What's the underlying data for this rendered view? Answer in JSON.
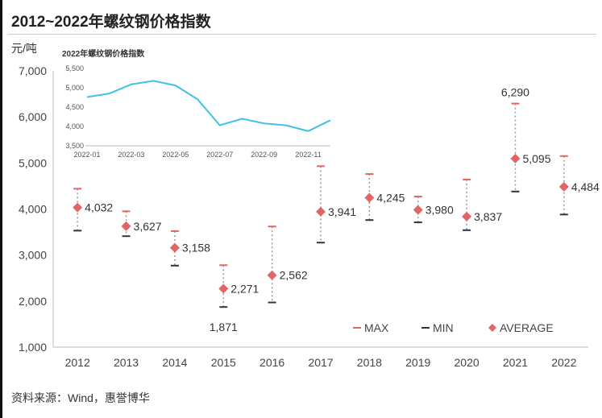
{
  "page": {
    "title": "2012~2022年螺纹钢价格指数",
    "unit": "元/吨",
    "source": "资料来源：Wind，惠誉博华"
  },
  "colors": {
    "max_marker": "#e06666",
    "min_marker": "#333333",
    "average_marker": "#e06666",
    "range_line": "#999999",
    "inset_line": "#3fc1e8",
    "axis": "#bbbbbb"
  },
  "chart_data": [
    {
      "type": "scatter",
      "title": "",
      "ylabel": "元/吨",
      "ylim": [
        1000,
        7000
      ],
      "yticks": [
        "1,000",
        "2,000",
        "3,000",
        "4,000",
        "5,000",
        "6,000",
        "7,000"
      ],
      "categories": [
        "2012",
        "2013",
        "2014",
        "2015",
        "2016",
        "2017",
        "2018",
        "2019",
        "2020",
        "2021",
        "2022"
      ],
      "series": [
        {
          "name": "MAX",
          "values": [
            4440,
            3950,
            3520,
            2780,
            3620,
            4930,
            4760,
            4270,
            4640,
            6290,
            5150
          ]
        },
        {
          "name": "MIN",
          "values": [
            3530,
            3410,
            2770,
            1871,
            1970,
            3270,
            3760,
            3710,
            3540,
            4380,
            3880
          ]
        },
        {
          "name": "AVERAGE",
          "values": [
            4032,
            3627,
            3158,
            2271,
            2562,
            3941,
            4245,
            3980,
            3837,
            5095,
            4484
          ]
        }
      ],
      "data_labels": [
        {
          "series": "AVERAGE",
          "index": 0,
          "text": "4,032"
        },
        {
          "series": "AVERAGE",
          "index": 1,
          "text": "3,627"
        },
        {
          "series": "AVERAGE",
          "index": 2,
          "text": "3,158"
        },
        {
          "series": "AVERAGE",
          "index": 3,
          "text": "2,271"
        },
        {
          "series": "AVERAGE",
          "index": 4,
          "text": "2,562"
        },
        {
          "series": "AVERAGE",
          "index": 5,
          "text": "3,941"
        },
        {
          "series": "AVERAGE",
          "index": 6,
          "text": "4,245"
        },
        {
          "series": "AVERAGE",
          "index": 7,
          "text": "3,980"
        },
        {
          "series": "AVERAGE",
          "index": 8,
          "text": "3,837"
        },
        {
          "series": "AVERAGE",
          "index": 9,
          "text": "5,095"
        },
        {
          "series": "AVERAGE",
          "index": 10,
          "text": "4,484"
        },
        {
          "series": "MIN",
          "index": 3,
          "text": "1,871"
        },
        {
          "series": "MAX",
          "index": 9,
          "text": "6,290"
        }
      ],
      "legend": {
        "position": "bottom-right",
        "items": [
          {
            "label": "MAX",
            "marker": "dash"
          },
          {
            "label": "MIN",
            "marker": "dash"
          },
          {
            "label": "AVERAGE",
            "marker": "diamond"
          }
        ]
      },
      "grid": false
    },
    {
      "type": "line",
      "title": "2022年螺纹钢价格指数",
      "ylim": [
        3500,
        5500
      ],
      "yticks": [
        "3,500",
        "4,000",
        "4,500",
        "5,000",
        "5,500"
      ],
      "xticks": [
        "2022-01",
        "2022-03",
        "2022-05",
        "2022-07",
        "2022-09",
        "2022-11"
      ],
      "x": [
        "2022-01",
        "2022-02",
        "2022-03",
        "2022-04",
        "2022-05",
        "2022-06",
        "2022-07",
        "2022-08",
        "2022-09",
        "2022-10",
        "2022-11",
        "2022-12"
      ],
      "series": [
        {
          "values": [
            4760,
            4850,
            5090,
            5180,
            5060,
            4700,
            4030,
            4200,
            4080,
            4030,
            3880,
            4160
          ]
        }
      ],
      "grid": false
    }
  ]
}
